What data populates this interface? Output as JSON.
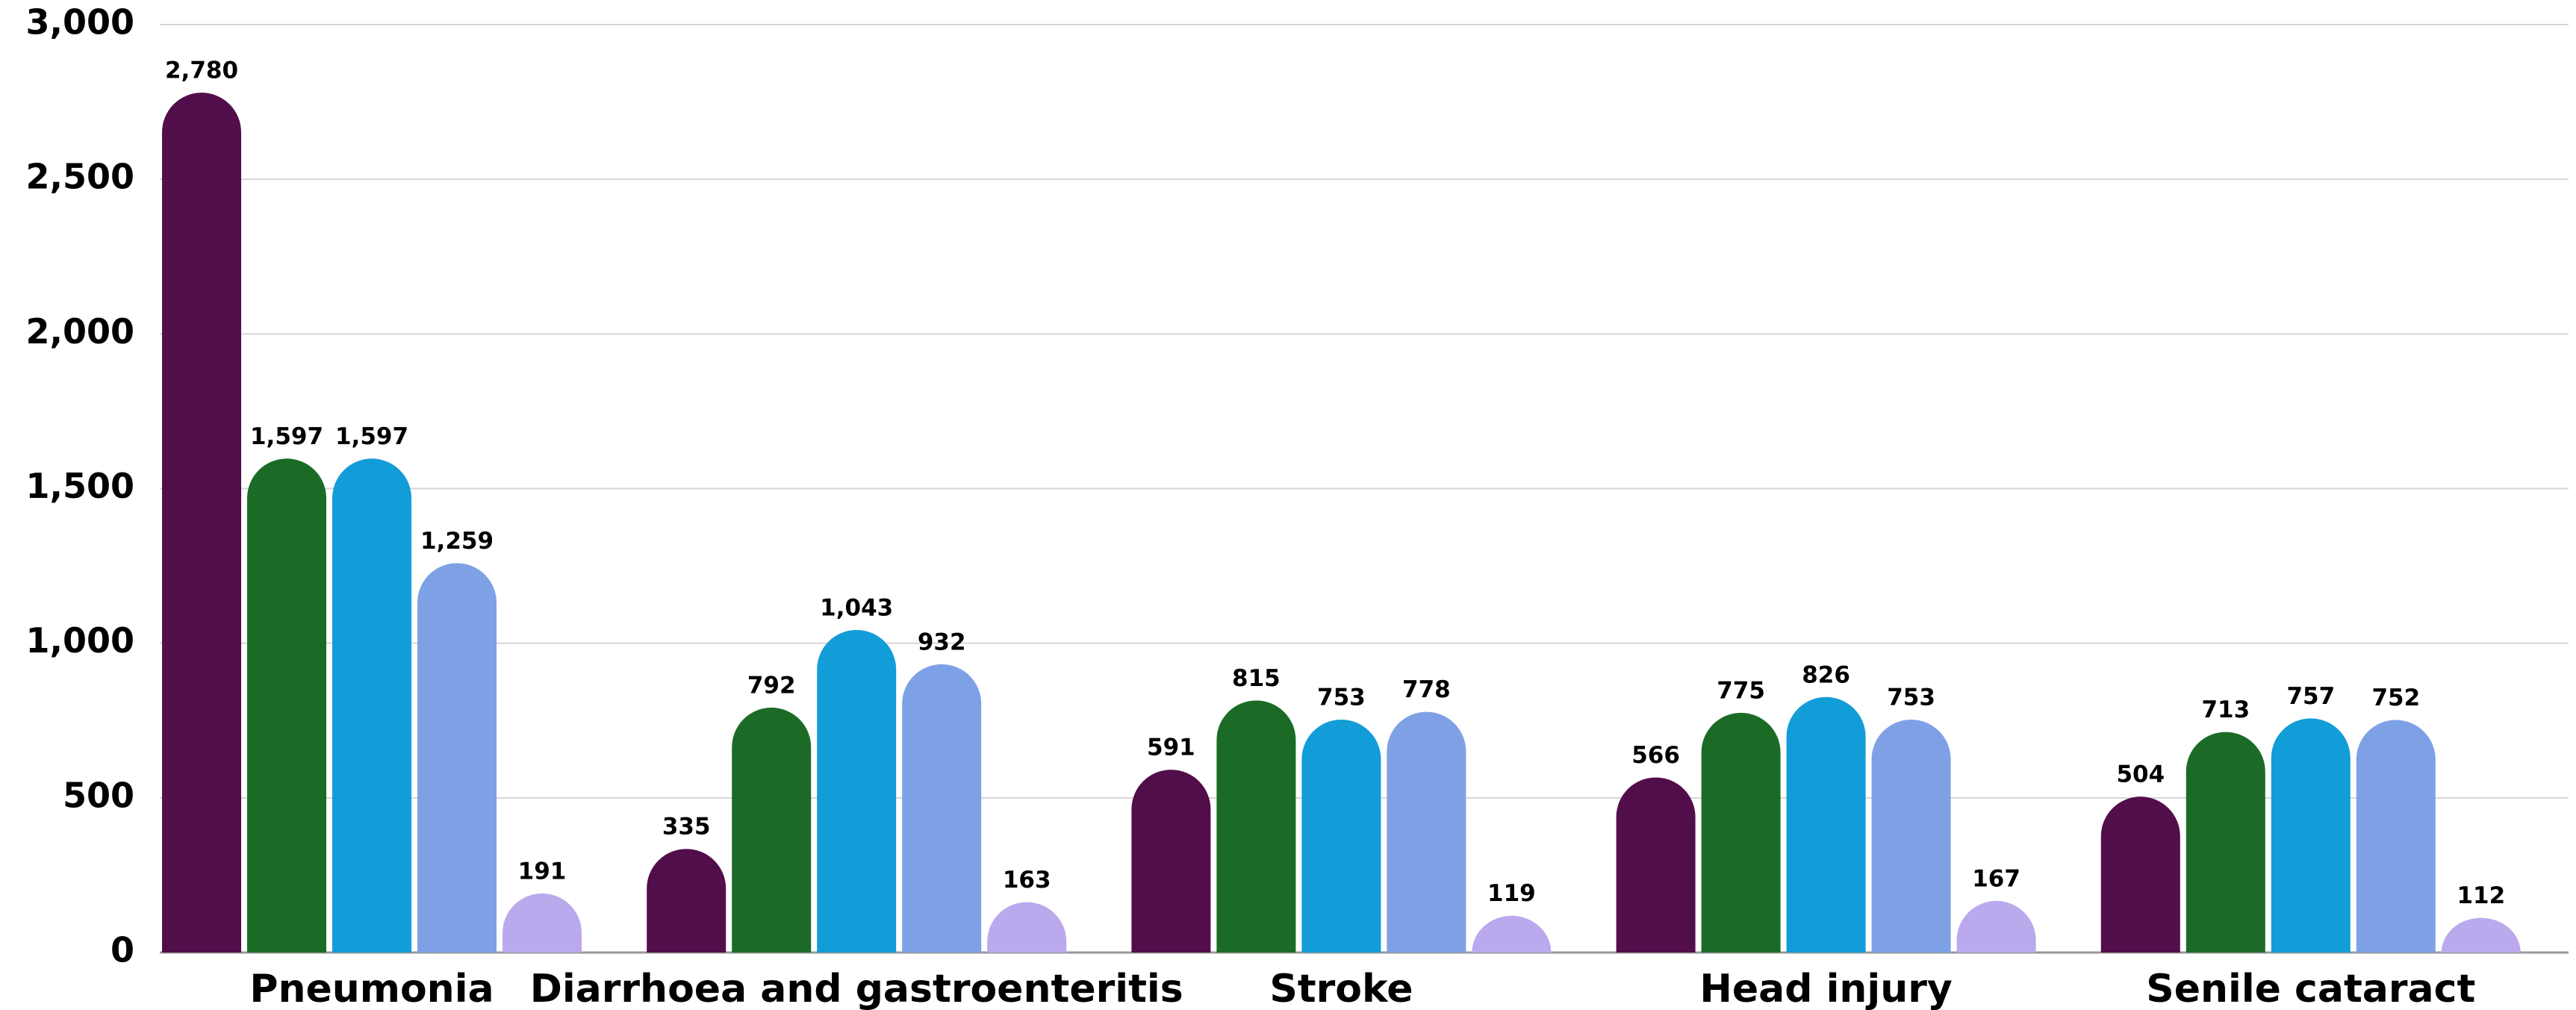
{
  "chart_data": {
    "type": "bar",
    "categories": [
      "Pneumonia",
      "Diarrhoea and gastroenteritis",
      "Stroke",
      "Head injury",
      "Senile cataract"
    ],
    "series": [
      {
        "color": "#520e4a",
        "values": [
          2780,
          335,
          591,
          566,
          504
        ],
        "value_labels": [
          "2,780",
          "335",
          "591",
          "566",
          "504"
        ]
      },
      {
        "color": "#1b6b27",
        "values": [
          1597,
          792,
          815,
          775,
          713
        ],
        "value_labels": [
          "1,597",
          "792",
          "815",
          "775",
          "713"
        ]
      },
      {
        "color": "#129dd8",
        "values": [
          1597,
          1043,
          753,
          826,
          757
        ],
        "value_labels": [
          "1,597",
          "1,043",
          "753",
          "826",
          "757"
        ]
      },
      {
        "color": "#7ea1e6",
        "values": [
          1259,
          932,
          778,
          753,
          752
        ],
        "value_labels": [
          "1,259",
          "932",
          "778",
          "753",
          "752"
        ]
      },
      {
        "color": "#bba9ee",
        "values": [
          191,
          163,
          119,
          167,
          112
        ],
        "value_labels": [
          "191",
          "163",
          "119",
          "167",
          "112"
        ]
      }
    ],
    "ylim": [
      0,
      3000
    ],
    "yticks": [
      0,
      500,
      {
        "value": 1000,
        "label": "1,000"
      },
      {
        "value": 1500,
        "label": "1,500"
      },
      {
        "value": 2000,
        "label": "2,000"
      },
      {
        "value": 2500,
        "label": "2,500"
      },
      {
        "value": 3000,
        "label": "3,000"
      }
    ],
    "grid": true
  }
}
